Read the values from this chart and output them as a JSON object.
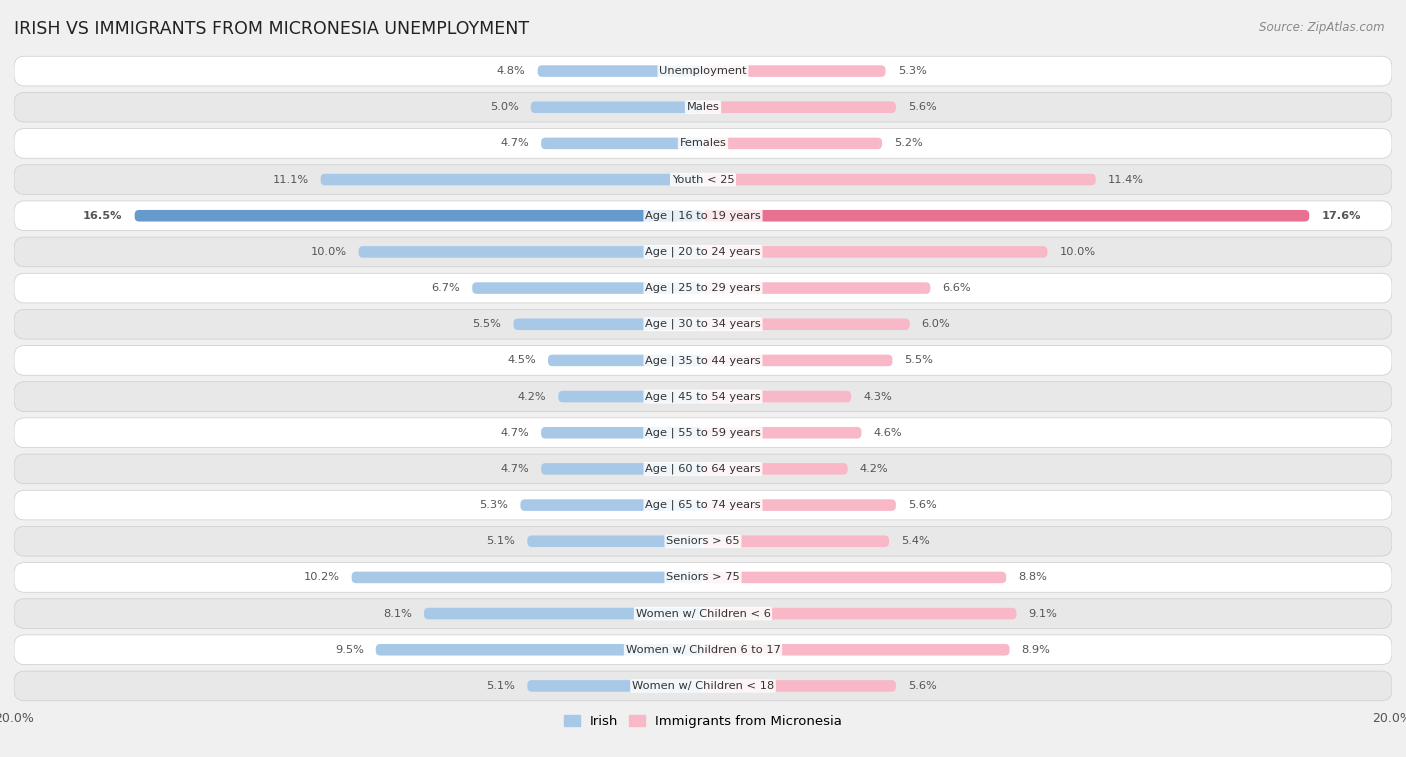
{
  "title": "IRISH VS IMMIGRANTS FROM MICRONESIA UNEMPLOYMENT",
  "source": "Source: ZipAtlas.com",
  "categories": [
    "Unemployment",
    "Males",
    "Females",
    "Youth < 25",
    "Age | 16 to 19 years",
    "Age | 20 to 24 years",
    "Age | 25 to 29 years",
    "Age | 30 to 34 years",
    "Age | 35 to 44 years",
    "Age | 45 to 54 years",
    "Age | 55 to 59 years",
    "Age | 60 to 64 years",
    "Age | 65 to 74 years",
    "Seniors > 65",
    "Seniors > 75",
    "Women w/ Children < 6",
    "Women w/ Children 6 to 17",
    "Women w/ Children < 18"
  ],
  "irish_values": [
    4.8,
    5.0,
    4.7,
    11.1,
    16.5,
    10.0,
    6.7,
    5.5,
    4.5,
    4.2,
    4.7,
    4.7,
    5.3,
    5.1,
    10.2,
    8.1,
    9.5,
    5.1
  ],
  "micronesia_values": [
    5.3,
    5.6,
    5.2,
    11.4,
    17.6,
    10.0,
    6.6,
    6.0,
    5.5,
    4.3,
    4.6,
    4.2,
    5.6,
    5.4,
    8.8,
    9.1,
    8.9,
    5.6
  ],
  "irish_color_normal": "#a8c8e8",
  "irish_color_highlight": "#6699cc",
  "micronesia_color_normal": "#f8b8c8",
  "micronesia_color_highlight": "#e87090",
  "irish_label": "Irish",
  "micronesia_label": "Immigrants from Micronesia",
  "axis_limit": 20.0,
  "bg_color": "#f0f0f0",
  "row_color_light": "#ffffff",
  "row_color_dark": "#e8e8e8",
  "highlight_row_index": 4,
  "value_label_color": "#555555",
  "category_label_color": "#333333",
  "title_color": "#222222",
  "source_color": "#888888"
}
